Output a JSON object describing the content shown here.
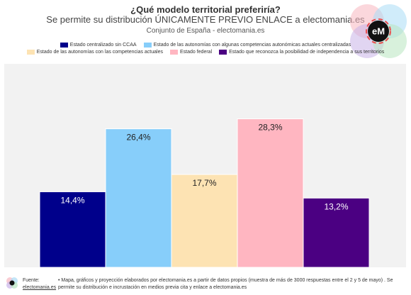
{
  "header": {
    "title": "¿Qué modelo territorial preferiría?",
    "subtitle": "Se permite su distribución ÚNICAMENTE PREVIO ENLACE a electomania.es",
    "scope": "Conjunto de España - electomania.es"
  },
  "logo": {
    "text": "eM",
    "icon": "electomania-logo-icon"
  },
  "chart_data": {
    "type": "bar",
    "categories": [
      "Estado centralizado sin CCAA",
      "Estado de las autonomías con algunas competencias autonómicas actuales centralizadas",
      "Estado de las autonomías con las competencias actuales",
      "Estado federal",
      "Estado que reconozca la posibilidad de independencia a sus territorios"
    ],
    "values": [
      14.4,
      26.4,
      17.7,
      28.3,
      13.2
    ],
    "value_labels": [
      "14,4%",
      "26,4%",
      "17,7%",
      "28,3%",
      "13,2%"
    ],
    "colors": [
      "#00008b",
      "#87cefa",
      "#fde3b3",
      "#ffb6c1",
      "#4b0082"
    ],
    "label_colors": [
      "#ffffff",
      "#222222",
      "#222222",
      "#222222",
      "#ffffff"
    ],
    "ylim": [
      0,
      40
    ],
    "grid": false,
    "legend_position": "top"
  },
  "footer": {
    "source_label": "Fuente:",
    "source_link": "electomania.es",
    "note": "• Mapa, gráficos y proyección elaborados por electomania.es a partir de datos propios (muestra de más de 3000 respuestas entre el 2 y 5 de mayo) . Se permite su distribución e incrustación en medios previa cita y enlace a electomania.es"
  }
}
